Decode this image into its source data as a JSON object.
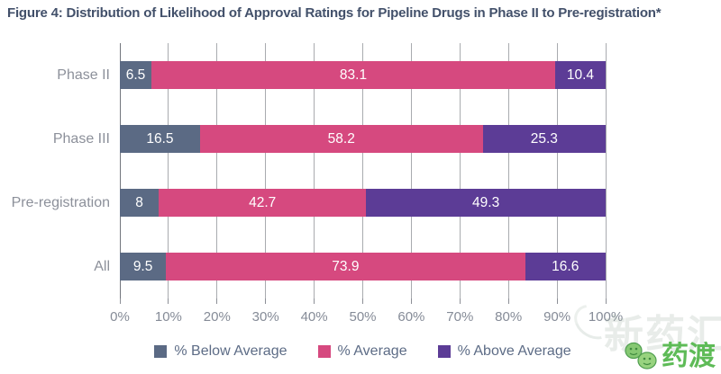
{
  "title": "Figure 4: Distribution of Likelihood of Approval Ratings for Pipeline Drugs in Phase II to Pre-registration*",
  "chart_data": {
    "type": "bar",
    "orientation": "horizontal",
    "stacked": true,
    "title": "Figure 4: Distribution of Likelihood of Approval Ratings for Pipeline Drugs in Phase II to Pre-registration*",
    "categories": [
      "Phase II",
      "Phase III",
      "Pre-registration",
      "All"
    ],
    "series": [
      {
        "name": "% Below Average",
        "color": "#5b6a84",
        "values": [
          6.5,
          16.5,
          8,
          9.5
        ]
      },
      {
        "name": "% Average",
        "color": "#d6497f",
        "values": [
          83.1,
          58.2,
          42.7,
          73.9
        ]
      },
      {
        "name": "% Above Average",
        "color": "#5c3c96",
        "values": [
          10.4,
          25.3,
          49.3,
          16.6
        ]
      }
    ],
    "xlim": [
      0,
      100
    ],
    "x_ticks": [
      "0%",
      "10%",
      "20%",
      "30%",
      "40%",
      "50%",
      "60%",
      "70%",
      "80%",
      "90%",
      "100%"
    ],
    "grid": true,
    "legend_position": "bottom",
    "value_labels": true
  },
  "watermark": {
    "logo_text": "药渡",
    "background_text": "新药汇",
    "green": "#5ebb57"
  }
}
